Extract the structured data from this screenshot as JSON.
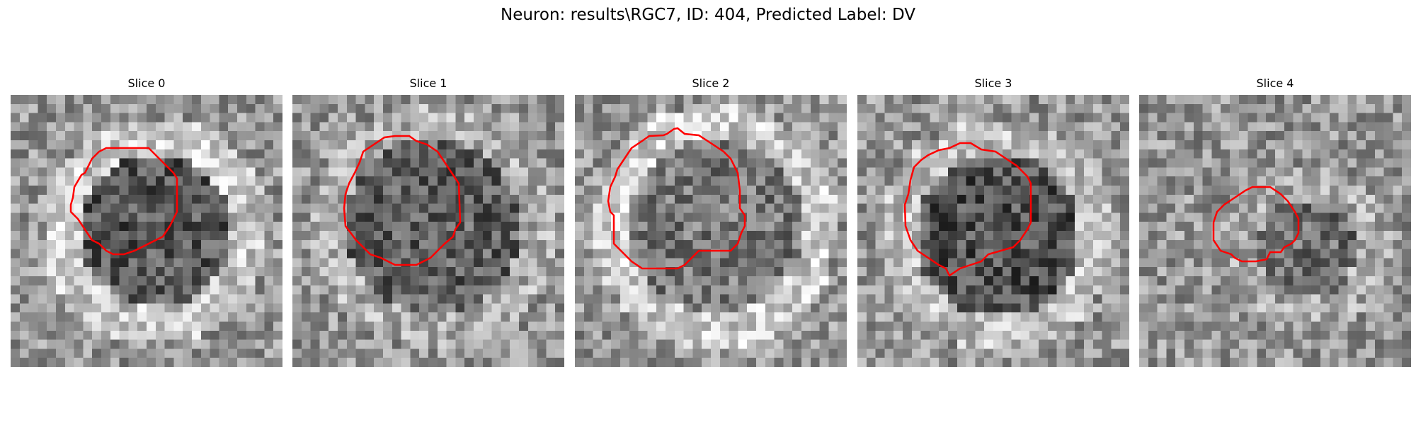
{
  "figure": {
    "title": "Neuron: results\\RGC7, ID: 404, Predicted Label: DV"
  },
  "colors": {
    "contour": "#ff0000"
  },
  "slices": [
    {
      "title": "Slice 0"
    },
    {
      "title": "Slice 1"
    },
    {
      "title": "Slice 2"
    },
    {
      "title": "Slice 3"
    },
    {
      "title": "Slice 4"
    }
  ]
}
